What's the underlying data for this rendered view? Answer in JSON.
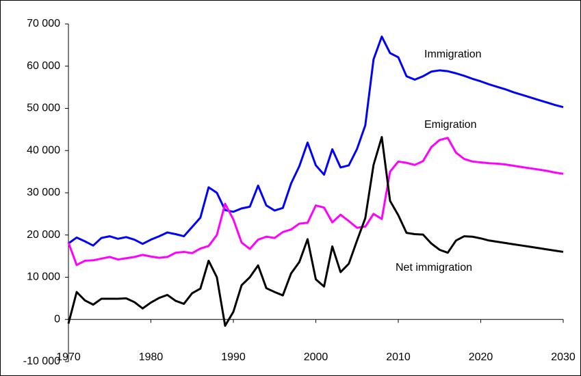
{
  "chart_data": {
    "type": "line",
    "x": [
      1970,
      1971,
      1972,
      1973,
      1974,
      1975,
      1976,
      1977,
      1978,
      1979,
      1980,
      1981,
      1982,
      1983,
      1984,
      1985,
      1986,
      1987,
      1988,
      1989,
      1990,
      1991,
      1992,
      1993,
      1994,
      1995,
      1996,
      1997,
      1998,
      1999,
      2000,
      2001,
      2002,
      2003,
      2004,
      2005,
      2006,
      2007,
      2008,
      2009,
      2010,
      2011,
      2012,
      2013,
      2014,
      2015,
      2016,
      2017,
      2018,
      2019,
      2020,
      2021,
      2022,
      2023,
      2024,
      2025,
      2026,
      2027,
      2028,
      2029,
      2030
    ],
    "series": [
      {
        "name": "Immigration",
        "color": "#0000ff",
        "values": [
          18000,
          19400,
          18500,
          17500,
          19300,
          19700,
          19100,
          19500,
          18900,
          17900,
          18900,
          19700,
          20600,
          20200,
          19700,
          21900,
          24100,
          31300,
          30000,
          25900,
          25500,
          26300,
          26700,
          31700,
          27000,
          25800,
          26400,
          32200,
          36300,
          41900,
          36500,
          34300,
          40300,
          36000,
          36500,
          40400,
          46000,
          61600,
          67000,
          63100,
          62100,
          57600,
          56800,
          57600,
          58700,
          59000,
          58800,
          58300,
          57700,
          57000,
          56400,
          55700,
          55100,
          54500,
          53800,
          53200,
          52600,
          52000,
          51400,
          50800,
          50300
        ]
      },
      {
        "name": "Emigration",
        "color": "#ff00ff",
        "values": [
          18200,
          12900,
          13900,
          14000,
          14400,
          14800,
          14200,
          14500,
          14800,
          15300,
          14900,
          14600,
          14800,
          15800,
          16000,
          15700,
          16800,
          17400,
          20000,
          27400,
          23700,
          18200,
          16700,
          18900,
          19600,
          19300,
          20700,
          21300,
          22700,
          22900,
          27000,
          26500,
          23000,
          24800,
          23300,
          21700,
          22000,
          25000,
          23800,
          35000,
          37400,
          37100,
          36600,
          37500,
          40800,
          42500,
          43000,
          39500,
          38000,
          37400,
          37200,
          37000,
          36900,
          36700,
          36400,
          36100,
          35800,
          35500,
          35200,
          34800,
          34500
        ]
      },
      {
        "name": "Net immigration",
        "color": "#000000",
        "values": [
          -1000,
          6500,
          4500,
          3500,
          4900,
          4900,
          4900,
          5000,
          4100,
          2600,
          4000,
          5100,
          5800,
          4400,
          3700,
          6200,
          7300,
          13900,
          10000,
          -1500,
          1800,
          8100,
          10000,
          12800,
          7400,
          6500,
          5700,
          10900,
          13600,
          19000,
          9500,
          7800,
          17300,
          11200,
          13200,
          18700,
          24000,
          36600,
          43200,
          28100,
          24700,
          20500,
          20200,
          20100,
          18000,
          16500,
          15800,
          18700,
          19700,
          19600,
          19200,
          18700,
          18400,
          18100,
          17800,
          17500,
          17200,
          16900,
          16600,
          16300,
          16000
        ]
      }
    ],
    "xlim": [
      1970,
      2030
    ],
    "xticks": [
      1970,
      1980,
      1990,
      2000,
      2010,
      2020,
      2030
    ],
    "ylim": [
      -10000,
      70000
    ],
    "yticks": [
      {
        "value": -10000,
        "label": "-10 000"
      },
      0,
      {
        "value": 10000,
        "label": "10 000"
      },
      {
        "value": 20000,
        "label": "20 000"
      },
      {
        "value": 30000,
        "label": "30 000"
      },
      {
        "value": 40000,
        "label": "40 000"
      },
      {
        "value": 50000,
        "label": "50 000"
      },
      {
        "value": 60000,
        "label": "60 000"
      },
      {
        "value": 70000,
        "label": "70 000"
      }
    ]
  }
}
